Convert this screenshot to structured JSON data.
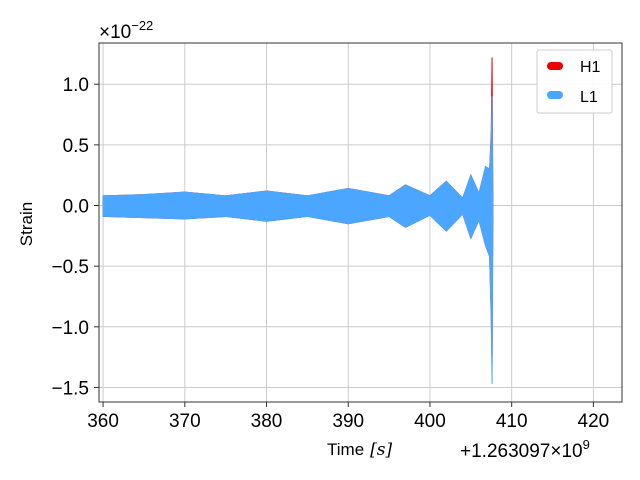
{
  "chart_data": {
    "type": "line",
    "xlabel": "Time",
    "xlabel_unit": "[s]",
    "ylabel": "Strain",
    "y_multiplier": "×10",
    "y_multiplier_exp": "−22",
    "x_offset_text": "+1.263097",
    "x_offset_times": "×10",
    "x_offset_exp": "9",
    "xlim": [
      359.5,
      423.5
    ],
    "ylim": [
      -1.62,
      1.34
    ],
    "x_ticks": [
      360,
      370,
      380,
      390,
      400,
      410,
      420
    ],
    "x_tick_labels": [
      "360",
      "370",
      "380",
      "390",
      "400",
      "410",
      "420"
    ],
    "y_ticks": [
      1.0,
      0.5,
      0.0,
      -0.5,
      -1.0,
      -1.5
    ],
    "y_tick_labels": [
      "1.0",
      "0.5",
      "0.0",
      "−0.5",
      "−1.0",
      "−1.5"
    ],
    "grid": true,
    "legend_position": "top-right",
    "series": [
      {
        "name": "H1",
        "color": "#ee0000",
        "envelope": {
          "x": [
            360,
            365,
            370,
            375,
            380,
            385,
            390,
            395,
            397,
            400,
            402,
            404,
            405,
            406,
            406.8,
            407.3,
            407.5,
            407.6,
            407.7
          ],
          "y_upper": [
            0.08,
            0.09,
            0.11,
            0.08,
            0.12,
            0.08,
            0.14,
            0.08,
            0.17,
            0.08,
            0.2,
            0.06,
            0.25,
            0.1,
            0.32,
            0.3,
            0.6,
            1.22,
            0.0
          ],
          "y_lower": [
            -0.09,
            -0.1,
            -0.11,
            -0.09,
            -0.13,
            -0.09,
            -0.15,
            -0.09,
            -0.18,
            -0.08,
            -0.21,
            -0.07,
            -0.27,
            -0.12,
            -0.33,
            -0.42,
            -0.9,
            -1.3,
            0.0
          ]
        }
      },
      {
        "name": "L1",
        "color": "#4ba6ff",
        "envelope": {
          "x": [
            360,
            365,
            370,
            375,
            380,
            385,
            390,
            395,
            397,
            400,
            402,
            404,
            405,
            406,
            406.8,
            407.3,
            407.5,
            407.6,
            407.7
          ],
          "y_upper": [
            0.08,
            0.09,
            0.11,
            0.08,
            0.12,
            0.08,
            0.14,
            0.08,
            0.17,
            0.08,
            0.2,
            0.06,
            0.25,
            0.1,
            0.32,
            0.3,
            0.55,
            0.9,
            0.0
          ],
          "y_lower": [
            -0.09,
            -0.1,
            -0.11,
            -0.09,
            -0.13,
            -0.09,
            -0.15,
            -0.09,
            -0.18,
            -0.08,
            -0.21,
            -0.07,
            -0.27,
            -0.12,
            -0.33,
            -0.42,
            -0.95,
            -1.47,
            0.0
          ]
        }
      }
    ]
  }
}
